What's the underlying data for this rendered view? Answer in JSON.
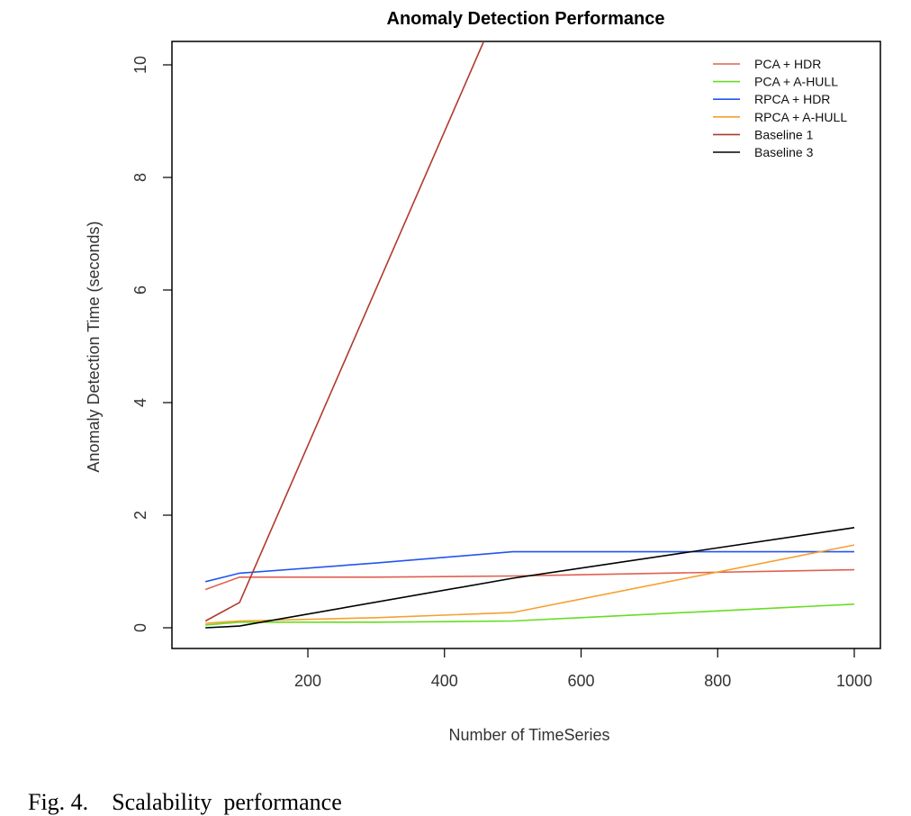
{
  "chart_data": {
    "type": "line",
    "title": "Anomaly Detection Performance",
    "xlabel": "Number of TimeSeries",
    "ylabel": "Anomaly Detection Time (seconds)",
    "xlim": [
      50,
      1000
    ],
    "ylim": [
      0,
      10
    ],
    "xticks": [
      200,
      400,
      600,
      800,
      1000
    ],
    "yticks": [
      0,
      2,
      4,
      6,
      8,
      10
    ],
    "legend_position": "top-right",
    "grid": false,
    "series": [
      {
        "name": "PCA + HDR",
        "color": "#e06050",
        "x": [
          50,
          100,
          300,
          500,
          1000
        ],
        "y": [
          0.68,
          0.9,
          0.9,
          0.92,
          1.03
        ]
      },
      {
        "name": "PCA + A-HULL",
        "color": "#66dd22",
        "x": [
          50,
          100,
          300,
          500,
          1000
        ],
        "y": [
          0.05,
          0.1,
          0.1,
          0.12,
          0.42
        ]
      },
      {
        "name": "RPCA + HDR",
        "color": "#2255ee",
        "x": [
          50,
          100,
          300,
          500,
          1000
        ],
        "y": [
          0.82,
          0.97,
          1.15,
          1.35,
          1.35
        ]
      },
      {
        "name": "RPCA + A-HULL",
        "color": "#f5a030",
        "x": [
          50,
          100,
          300,
          500,
          1000
        ],
        "y": [
          0.08,
          0.12,
          0.18,
          0.27,
          1.47
        ]
      },
      {
        "name": "Baseline 1",
        "color": "#b03a2e",
        "x": [
          50,
          100,
          500
        ],
        "y": [
          0.12,
          0.45,
          11.6
        ]
      },
      {
        "name": "Baseline 3",
        "color": "#000000",
        "x": [
          50,
          100,
          500,
          1000
        ],
        "y": [
          0.0,
          0.03,
          0.88,
          1.78
        ]
      }
    ]
  },
  "caption": {
    "label": "Fig. 4.",
    "text": "Scalability  performance"
  }
}
